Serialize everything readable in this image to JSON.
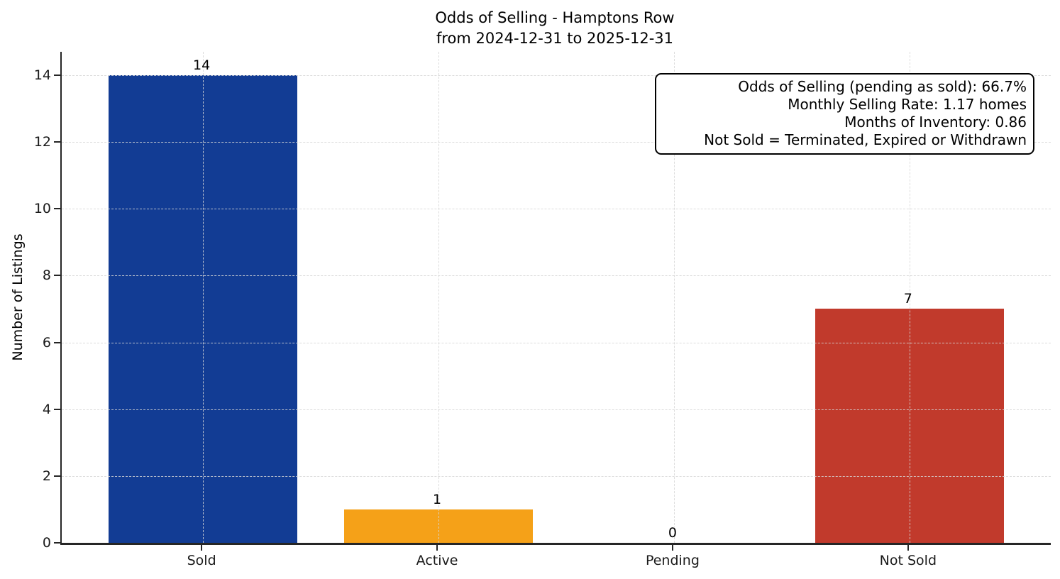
{
  "title": {
    "line1": "Odds of Selling - Hamptons Row",
    "line2": "from 2024-12-31 to 2025-12-31"
  },
  "axes": {
    "ylabel": "Number of Listings"
  },
  "chart_data": {
    "type": "bar",
    "title": "Odds of Selling - Hamptons Row\nfrom 2024-12-31 to 2025-12-31",
    "categories": [
      "Sold",
      "Active",
      "Pending",
      "Not Sold"
    ],
    "values": [
      14,
      1,
      0,
      7
    ],
    "bar_labels": [
      "14",
      "1",
      "0",
      "7"
    ],
    "bar_colors": [
      "#123c94",
      "#f5a118",
      null,
      "#c13a2c"
    ],
    "xlabel": "",
    "ylabel": "Number of Listings",
    "yticks": [
      0,
      2,
      4,
      6,
      8,
      10,
      12,
      14
    ],
    "ylim": [
      0,
      14.7
    ],
    "grid": true,
    "grid_style": "dashed",
    "grid_above_bars": true,
    "legend_position": "none",
    "annotation_lines": [
      "Odds of Selling (pending as sold): 66.7%",
      "Monthly Selling Rate: 1.17 homes",
      "Months of Inventory: 0.86",
      "Not Sold = Terminated, Expired or Withdrawn"
    ]
  },
  "colors": {
    "axis": "#262626",
    "tick_text": "#1a1a1a",
    "grid": "#d6d6d6",
    "background": "#ffffff",
    "annotation_border": "#000000"
  }
}
